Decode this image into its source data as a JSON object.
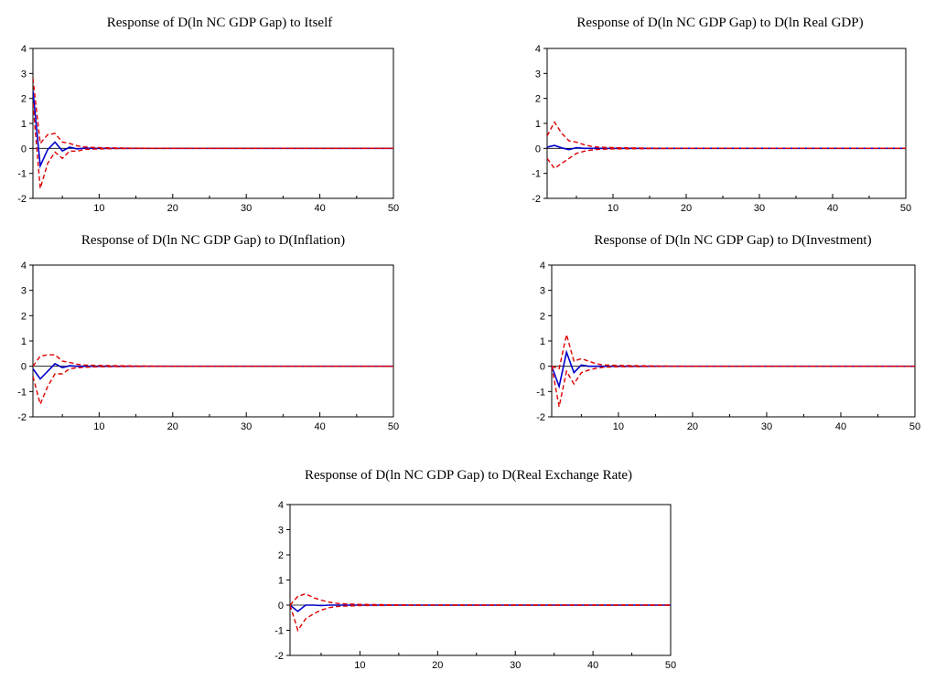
{
  "chart_data": [
    {
      "type": "line",
      "title": "Response of D(ln NC GDP Gap) to Itself",
      "xlim": [
        1,
        50
      ],
      "ylim": [
        -2,
        4
      ],
      "x_ticks": [
        10,
        20,
        30,
        40,
        50
      ],
      "y_ticks": [
        -2,
        -1,
        0,
        1,
        2,
        3,
        4
      ],
      "series": [
        {
          "role": "response",
          "color": "#0000cc",
          "style": "solid",
          "x": [
            1,
            2,
            3,
            4,
            5,
            6,
            7,
            8,
            9,
            10,
            12,
            15,
            20,
            30,
            40,
            50
          ],
          "y": [
            2.3,
            -0.7,
            -0.05,
            0.25,
            -0.1,
            0.05,
            -0.02,
            0.01,
            0,
            0,
            0,
            0,
            0,
            0,
            0,
            0
          ]
        },
        {
          "role": "upper-band",
          "color": "#dd0000",
          "style": "dashed",
          "x": [
            1,
            2,
            3,
            4,
            5,
            6,
            7,
            8,
            9,
            10,
            12,
            15,
            20,
            30,
            40,
            50
          ],
          "y": [
            2.8,
            0.2,
            0.55,
            0.6,
            0.25,
            0.2,
            0.1,
            0.06,
            0.04,
            0.03,
            0.02,
            0.01,
            0,
            0,
            0,
            0
          ]
        },
        {
          "role": "lower-band",
          "color": "#dd0000",
          "style": "dashed",
          "x": [
            1,
            2,
            3,
            4,
            5,
            6,
            7,
            8,
            9,
            10,
            12,
            15,
            20,
            30,
            40,
            50
          ],
          "y": [
            1.8,
            -1.6,
            -0.6,
            -0.15,
            -0.4,
            -0.1,
            -0.12,
            -0.04,
            -0.03,
            -0.02,
            -0.01,
            0,
            0,
            0,
            0,
            0
          ]
        }
      ]
    },
    {
      "type": "line",
      "title": "Response of D(ln NC GDP Gap) to D(ln Real GDP)",
      "xlim": [
        1,
        50
      ],
      "ylim": [
        -2,
        4
      ],
      "x_ticks": [
        10,
        20,
        30,
        40,
        50
      ],
      "y_ticks": [
        -2,
        -1,
        0,
        1,
        2,
        3,
        4
      ],
      "series": [
        {
          "role": "response",
          "color": "#0000cc",
          "style": "solid",
          "x": [
            1,
            2,
            3,
            4,
            5,
            6,
            7,
            8,
            10,
            15,
            20,
            30,
            40,
            50
          ],
          "y": [
            0.05,
            0.12,
            0.02,
            -0.05,
            0.03,
            0,
            0,
            0,
            0,
            0,
            0,
            0,
            0,
            0
          ]
        },
        {
          "role": "upper-band",
          "color": "#dd0000",
          "style": "dashed",
          "x": [
            1,
            2,
            3,
            4,
            5,
            6,
            7,
            8,
            10,
            15,
            20,
            30,
            40,
            50
          ],
          "y": [
            0.5,
            1.05,
            0.6,
            0.3,
            0.25,
            0.15,
            0.08,
            0.05,
            0.03,
            0.01,
            0,
            0,
            0,
            0
          ]
        },
        {
          "role": "lower-band",
          "color": "#dd0000",
          "style": "dashed",
          "x": [
            1,
            2,
            3,
            4,
            5,
            6,
            7,
            8,
            10,
            15,
            20,
            30,
            40,
            50
          ],
          "y": [
            -0.4,
            -0.8,
            -0.6,
            -0.4,
            -0.2,
            -0.12,
            -0.07,
            -0.04,
            -0.02,
            -0.01,
            0,
            0,
            0,
            0
          ]
        }
      ]
    },
    {
      "type": "line",
      "title": "Response of D(ln NC GDP Gap) to D(Inflation)",
      "xlim": [
        1,
        50
      ],
      "ylim": [
        -2,
        4
      ],
      "x_ticks": [
        10,
        20,
        30,
        40,
        50
      ],
      "y_ticks": [
        -2,
        -1,
        0,
        1,
        2,
        3,
        4
      ],
      "series": [
        {
          "role": "response",
          "color": "#0000cc",
          "style": "solid",
          "x": [
            1,
            2,
            3,
            4,
            5,
            6,
            7,
            8,
            10,
            15,
            20,
            30,
            40,
            50
          ],
          "y": [
            -0.1,
            -0.5,
            -0.2,
            0.1,
            -0.05,
            0.02,
            0,
            0,
            0,
            0,
            0,
            0,
            0,
            0
          ]
        },
        {
          "role": "upper-band",
          "color": "#dd0000",
          "style": "dashed",
          "x": [
            1,
            2,
            3,
            4,
            5,
            6,
            7,
            8,
            10,
            15,
            20,
            30,
            40,
            50
          ],
          "y": [
            0,
            0.4,
            0.45,
            0.45,
            0.2,
            0.15,
            0.08,
            0.05,
            0.03,
            0.01,
            0,
            0,
            0,
            0
          ]
        },
        {
          "role": "lower-band",
          "color": "#dd0000",
          "style": "dashed",
          "x": [
            1,
            2,
            3,
            4,
            5,
            6,
            7,
            8,
            10,
            15,
            20,
            30,
            40,
            50
          ],
          "y": [
            -0.4,
            -1.5,
            -0.8,
            -0.3,
            -0.3,
            -0.1,
            -0.06,
            -0.04,
            -0.02,
            -0.01,
            0,
            0,
            0,
            0
          ]
        }
      ]
    },
    {
      "type": "line",
      "title": "Response of D(ln NC GDP Gap) to D(Investment)",
      "xlim": [
        1,
        50
      ],
      "ylim": [
        -2,
        4
      ],
      "x_ticks": [
        10,
        20,
        30,
        40,
        50
      ],
      "y_ticks": [
        -2,
        -1,
        0,
        1,
        2,
        3,
        4
      ],
      "series": [
        {
          "role": "response",
          "color": "#0000cc",
          "style": "solid",
          "x": [
            1,
            2,
            3,
            4,
            5,
            6,
            7,
            8,
            10,
            15,
            20,
            30,
            40,
            50
          ],
          "y": [
            0,
            -0.8,
            0.55,
            -0.25,
            0.05,
            0,
            0,
            0,
            0,
            0,
            0,
            0,
            0,
            0
          ]
        },
        {
          "role": "upper-band",
          "color": "#dd0000",
          "style": "dashed",
          "x": [
            1,
            2,
            3,
            4,
            5,
            6,
            7,
            8,
            10,
            15,
            20,
            30,
            40,
            50
          ],
          "y": [
            0,
            -0.1,
            1.25,
            0.2,
            0.3,
            0.2,
            0.1,
            0.05,
            0.03,
            0.01,
            0,
            0,
            0,
            0
          ]
        },
        {
          "role": "lower-band",
          "color": "#dd0000",
          "style": "dashed",
          "x": [
            1,
            2,
            3,
            4,
            5,
            6,
            7,
            8,
            10,
            15,
            20,
            30,
            40,
            50
          ],
          "y": [
            0,
            -1.6,
            -0.2,
            -0.7,
            -0.25,
            -0.15,
            -0.08,
            -0.04,
            -0.02,
            -0.01,
            0,
            0,
            0,
            0
          ]
        }
      ]
    },
    {
      "type": "line",
      "title": "Response of D(ln NC GDP Gap) to D(Real Exchange Rate)",
      "xlim": [
        1,
        50
      ],
      "ylim": [
        -2,
        4
      ],
      "x_ticks": [
        10,
        20,
        30,
        40,
        50
      ],
      "y_ticks": [
        -2,
        -1,
        0,
        1,
        2,
        3,
        4
      ],
      "series": [
        {
          "role": "response",
          "color": "#0000cc",
          "style": "solid",
          "x": [
            1,
            2,
            3,
            4,
            5,
            6,
            7,
            8,
            10,
            15,
            20,
            30,
            40,
            50
          ],
          "y": [
            0,
            -0.25,
            0,
            0,
            -0.02,
            0,
            0,
            0,
            0,
            0,
            0,
            0,
            0,
            0
          ]
        },
        {
          "role": "upper-band",
          "color": "#dd0000",
          "style": "dashed",
          "x": [
            1,
            2,
            3,
            4,
            5,
            6,
            7,
            8,
            10,
            15,
            20,
            30,
            40,
            50
          ],
          "y": [
            0,
            0.35,
            0.45,
            0.3,
            0.2,
            0.12,
            0.07,
            0.05,
            0.03,
            0.01,
            0,
            0,
            0,
            0
          ]
        },
        {
          "role": "lower-band",
          "color": "#dd0000",
          "style": "dashed",
          "x": [
            1,
            2,
            3,
            4,
            5,
            6,
            7,
            8,
            10,
            15,
            20,
            30,
            40,
            50
          ],
          "y": [
            0,
            -1.0,
            -0.55,
            -0.35,
            -0.2,
            -0.1,
            -0.06,
            -0.04,
            -0.02,
            -0.01,
            0,
            0,
            0,
            0
          ]
        }
      ]
    }
  ]
}
